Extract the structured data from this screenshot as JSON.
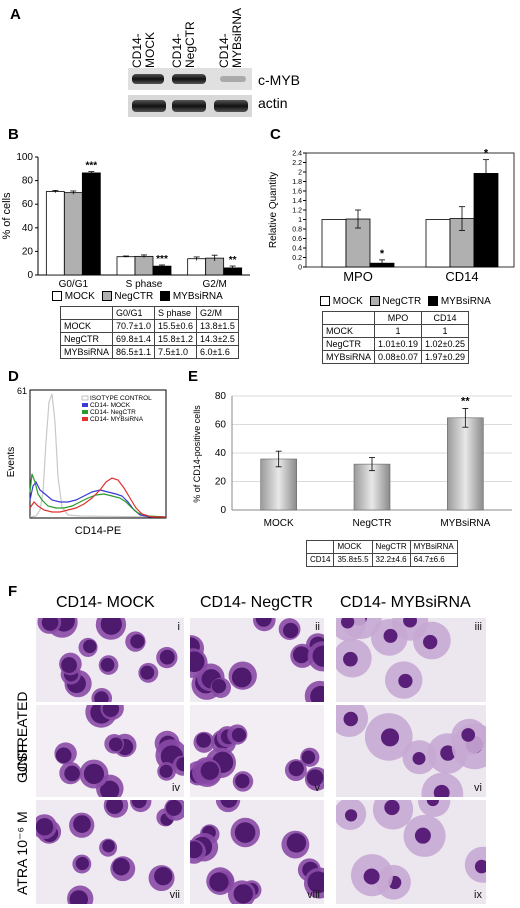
{
  "panel_letters": {
    "a": "A",
    "b": "B",
    "c": "C",
    "d": "D",
    "e": "E",
    "f": "F"
  },
  "panel_a": {
    "lanes": [
      "CD14- MOCK",
      "CD14- NegCTR",
      "CD14- MYBsiRNA"
    ],
    "bands": [
      "c-MYB",
      "actin"
    ]
  },
  "panel_b": {
    "ylabel": "% of cells",
    "yticks": [
      "0",
      "20",
      "40",
      "60",
      "80",
      "100"
    ],
    "categories": [
      "G0/G1",
      "S phase",
      "G2/M"
    ],
    "legend": [
      "MOCK",
      "NegCTR",
      "MYBsiRNA"
    ],
    "annotations": [
      "***",
      "***",
      "**"
    ],
    "table": {
      "header": [
        "",
        "G0/G1",
        "S phase",
        "G2/M"
      ],
      "rows": [
        [
          "MOCK",
          "70.7±1.0",
          "15.5±0.6",
          "13.8±1.5"
        ],
        [
          "NegCTR",
          "69.8±1.4",
          "15.8±1.2",
          "14.3±2.5"
        ],
        [
          "MYBsiRNA",
          "86.5±1.1",
          "7.5±1.0",
          "6.0±1.6"
        ]
      ]
    }
  },
  "panel_c": {
    "ylabel": "Relative Quantity",
    "yticks": [
      "0",
      "0.2",
      "0.4",
      "0.6",
      "0.8",
      "1",
      "1.2",
      "1.4",
      "1.6",
      "1.8",
      "2",
      "2.2",
      "2.4"
    ],
    "categories": [
      "MPO",
      "CD14"
    ],
    "legend": [
      "MOCK",
      "NegCTR",
      "MYBsiRNA"
    ],
    "annotations": [
      "*",
      "*"
    ],
    "table": {
      "header": [
        "",
        "MPO",
        "CD14"
      ],
      "rows": [
        [
          "MOCK",
          "1",
          "1"
        ],
        [
          "NegCTR",
          "1.01±0.19",
          "1.02±0.25"
        ],
        [
          "MYBsiRNA",
          "0.08±0.07",
          "1.97±0.29"
        ]
      ]
    }
  },
  "panel_d": {
    "ylabel": "Events",
    "ymax_label": "61",
    "xlabel": "CD14-PE",
    "legend": [
      "ISOTYPE CONTROL",
      "CD14- MOCK",
      "CD14- NegCTR",
      "CD14- MYBsiRNA"
    ]
  },
  "panel_e": {
    "ylabel": "% of CD14-positive cells",
    "yticks": [
      "0",
      "20",
      "40",
      "60",
      "80"
    ],
    "categories": [
      "MOCK",
      "NegCTR",
      "MYBsiRNA"
    ],
    "annotation": "**",
    "table": {
      "header": [
        "",
        "MOCK",
        "NegCTR",
        "MYBsiRNA"
      ],
      "rows": [
        [
          "CD14",
          "35.8±5.5",
          "32.2±4.6",
          "64.7±6.6"
        ]
      ]
    }
  },
  "panel_f": {
    "columns": [
      "CD14- MOCK",
      "CD14- NegCTR",
      "CD14- MYBsiRNA"
    ],
    "rows": [
      "UNTREATED",
      "GCSF",
      "ATRA 10⁻⁶ M"
    ],
    "numerals": [
      "i",
      "ii",
      "iii",
      "iv",
      "v",
      "vi",
      "vii",
      "viii",
      "ix"
    ]
  },
  "colors": {
    "mock": "#ffffff",
    "negctr": "#b0b0b0",
    "mybsirna": "#000000",
    "isotype": "#c8c8c8",
    "d_mock": "#3a3ad8",
    "d_negctr": "#2a9a2a",
    "d_myb": "#e03030",
    "stain_purple": "#6a2a8a",
    "stain_light": "#c8a6d6"
  },
  "chart_data": [
    {
      "type": "bar",
      "panel": "B",
      "categories": [
        "G0/G1",
        "S phase",
        "G2/M"
      ],
      "series": [
        {
          "name": "MOCK",
          "values": [
            70.7,
            15.5,
            13.8
          ],
          "errors": [
            1.0,
            0.6,
            1.5
          ]
        },
        {
          "name": "NegCTR",
          "values": [
            69.8,
            15.8,
            14.3
          ],
          "errors": [
            1.4,
            1.2,
            2.5
          ]
        },
        {
          "name": "MYBsiRNA",
          "values": [
            86.5,
            7.5,
            6.0
          ],
          "errors": [
            1.1,
            1.0,
            1.6
          ]
        }
      ],
      "ylabel": "% of cells",
      "ylim": [
        0,
        100
      ],
      "legend_position": "bottom"
    },
    {
      "type": "bar",
      "panel": "C",
      "categories": [
        "MPO",
        "CD14"
      ],
      "series": [
        {
          "name": "MOCK",
          "values": [
            1,
            1
          ],
          "errors": [
            0,
            0
          ]
        },
        {
          "name": "NegCTR",
          "values": [
            1.01,
            1.02
          ],
          "errors": [
            0.19,
            0.25
          ]
        },
        {
          "name": "MYBsiRNA",
          "values": [
            0.08,
            1.97
          ],
          "errors": [
            0.07,
            0.29
          ]
        }
      ],
      "ylabel": "Relative Quantity",
      "ylim": [
        0,
        2.4
      ],
      "legend_position": "bottom",
      "grid": false
    },
    {
      "type": "bar",
      "panel": "E",
      "categories": [
        "MOCK",
        "NegCTR",
        "MYBsiRNA"
      ],
      "series": [
        {
          "values": [
            35.8,
            32.2,
            64.7
          ],
          "errors": [
            5.5,
            4.6,
            6.6
          ]
        }
      ],
      "ylabel": "% of CD14-positive cells",
      "ylim": [
        0,
        80
      ],
      "grid": true
    }
  ]
}
